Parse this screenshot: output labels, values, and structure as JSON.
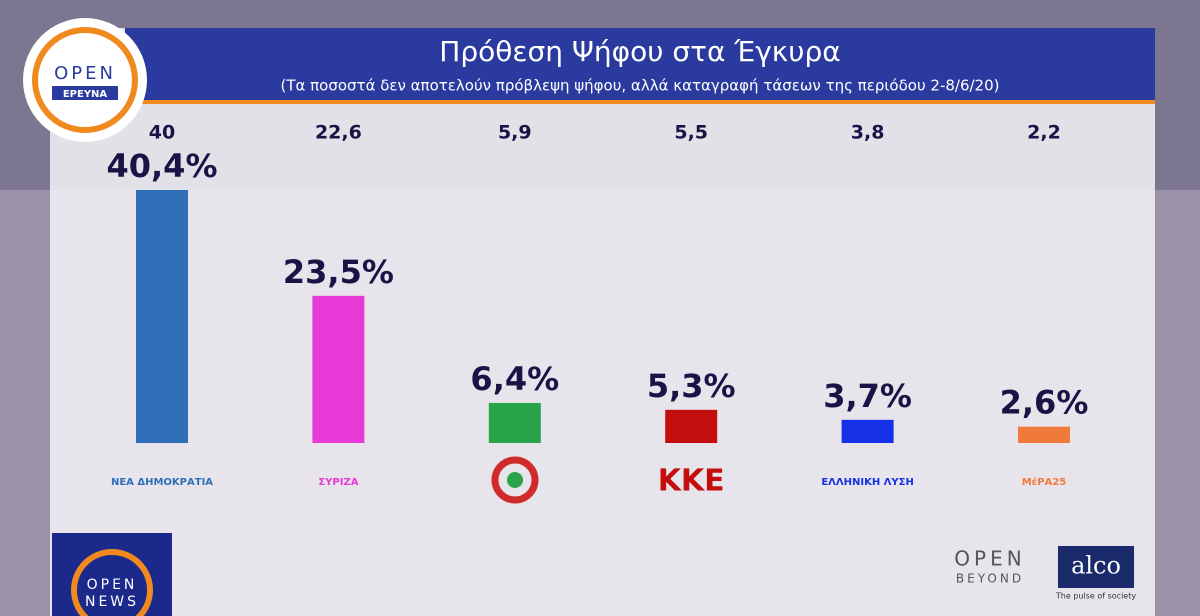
{
  "chart_data": {
    "type": "bar",
    "title": "Πρόθεση Ψήφου στα Έγκυρα",
    "subtitle": "(Τα ποσοστά δεν αποτελούν πρόβλεψη ψήφου, αλλά καταγραφή τάσεων της περιόδου 2-8/6/20)",
    "categories": [
      "ΝΕΑ ΔΗΜΟΚΡΑΤΙΑ",
      "ΣΥΡΙΖΑ",
      null,
      "ΚΚΕ",
      "ΕΛΛΗΝΙΚΗ ΛΥΣΗ",
      "ΜέΡΑ25"
    ],
    "values": [
      40.4,
      23.5,
      6.4,
      5.3,
      3.7,
      2.6
    ],
    "value_labels": [
      "40,4%",
      "23,5%",
      "6,4%",
      "5,3%",
      "3,7%",
      "2,6%"
    ],
    "colors": [
      "#2f6fb8",
      "#e83ad6",
      "#2aa44a",
      "#c40d0d",
      "#1530e6",
      "#f07a3a"
    ],
    "reference_values": [
      40,
      22.6,
      5.9,
      5.5,
      3.8,
      2.2
    ],
    "reference_labels": [
      "40",
      "22,6",
      "5,9",
      "5,5",
      "3,8",
      "2,2"
    ],
    "ylim": [
      0,
      42
    ]
  },
  "branding": {
    "logo_top": "OPEN",
    "logo_sub": "ΕΡΕΥΝΑ",
    "news_top": "OPEN",
    "news_sub": "NEWS",
    "beyond_top": "OPEN",
    "beyond_sub": "BEYOND",
    "alco": "alco",
    "alco_tagline": "The pulse of society"
  }
}
